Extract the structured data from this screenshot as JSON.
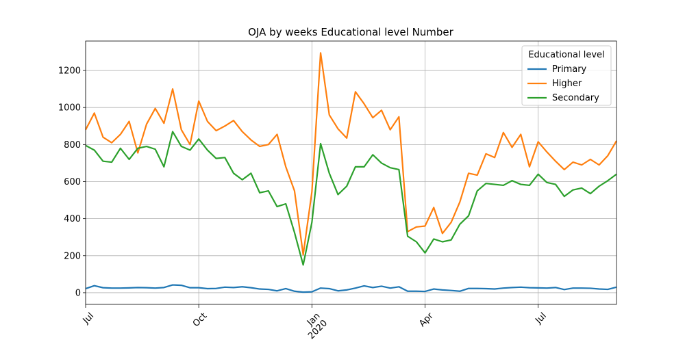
{
  "chart_data": {
    "type": "line",
    "title": "OJA by weeks Educational level Number",
    "legend_title": "Educational level",
    "legend": "upper right",
    "grid": true,
    "categories": [
      "Jul",
      null,
      null,
      null,
      null,
      null,
      null,
      null,
      null,
      null,
      null,
      null,
      null,
      "Oct",
      null,
      null,
      null,
      null,
      null,
      null,
      null,
      null,
      null,
      null,
      null,
      null,
      "Jan\n2020",
      null,
      null,
      null,
      null,
      null,
      null,
      null,
      null,
      null,
      null,
      null,
      null,
      "Apr",
      null,
      null,
      null,
      null,
      null,
      null,
      null,
      null,
      null,
      null,
      null,
      null,
      "Jul",
      null,
      null,
      null,
      null,
      null,
      null,
      null,
      null,
      null
    ],
    "ylim": [
      -63,
      1359
    ],
    "yticks": [
      0,
      200,
      400,
      600,
      800,
      1000,
      1200
    ],
    "series": [
      {
        "name": "Primary",
        "color": "#1f77b4",
        "values": [
          22,
          38,
          27,
          25,
          25,
          26,
          28,
          27,
          25,
          28,
          42,
          40,
          27,
          27,
          22,
          23,
          30,
          28,
          32,
          27,
          20,
          18,
          10,
          22,
          8,
          3,
          5,
          25,
          22,
          10,
          15,
          25,
          37,
          28,
          35,
          25,
          32,
          8,
          8,
          7,
          20,
          15,
          12,
          8,
          23,
          23,
          22,
          20,
          25,
          28,
          30,
          27,
          26,
          25,
          28,
          17,
          25,
          25,
          24,
          20,
          18,
          30
        ]
      },
      {
        "name": "Higher",
        "color": "#ff7f0e",
        "values": [
          880,
          970,
          840,
          810,
          855,
          925,
          755,
          910,
          995,
          915,
          1100,
          880,
          800,
          1035,
          925,
          875,
          900,
          930,
          870,
          825,
          790,
          800,
          855,
          680,
          550,
          205,
          545,
          1295,
          960,
          885,
          835,
          1085,
          1020,
          945,
          985,
          880,
          950,
          330,
          355,
          360,
          460,
          320,
          380,
          490,
          645,
          635,
          750,
          730,
          865,
          785,
          855,
          680,
          815,
          760,
          710,
          665,
          705,
          690,
          720,
          690,
          740,
          820
        ]
      },
      {
        "name": "Secondary",
        "color": "#2ca02c",
        "values": [
          795,
          770,
          710,
          705,
          780,
          720,
          780,
          790,
          775,
          680,
          870,
          790,
          770,
          830,
          770,
          725,
          730,
          645,
          610,
          645,
          540,
          550,
          465,
          480,
          325,
          150,
          380,
          805,
          645,
          530,
          575,
          680,
          680,
          745,
          700,
          675,
          665,
          305,
          275,
          215,
          290,
          275,
          285,
          370,
          415,
          550,
          590,
          585,
          580,
          605,
          585,
          580,
          640,
          595,
          585,
          520,
          555,
          565,
          535,
          575,
          605,
          640
        ]
      }
    ]
  }
}
